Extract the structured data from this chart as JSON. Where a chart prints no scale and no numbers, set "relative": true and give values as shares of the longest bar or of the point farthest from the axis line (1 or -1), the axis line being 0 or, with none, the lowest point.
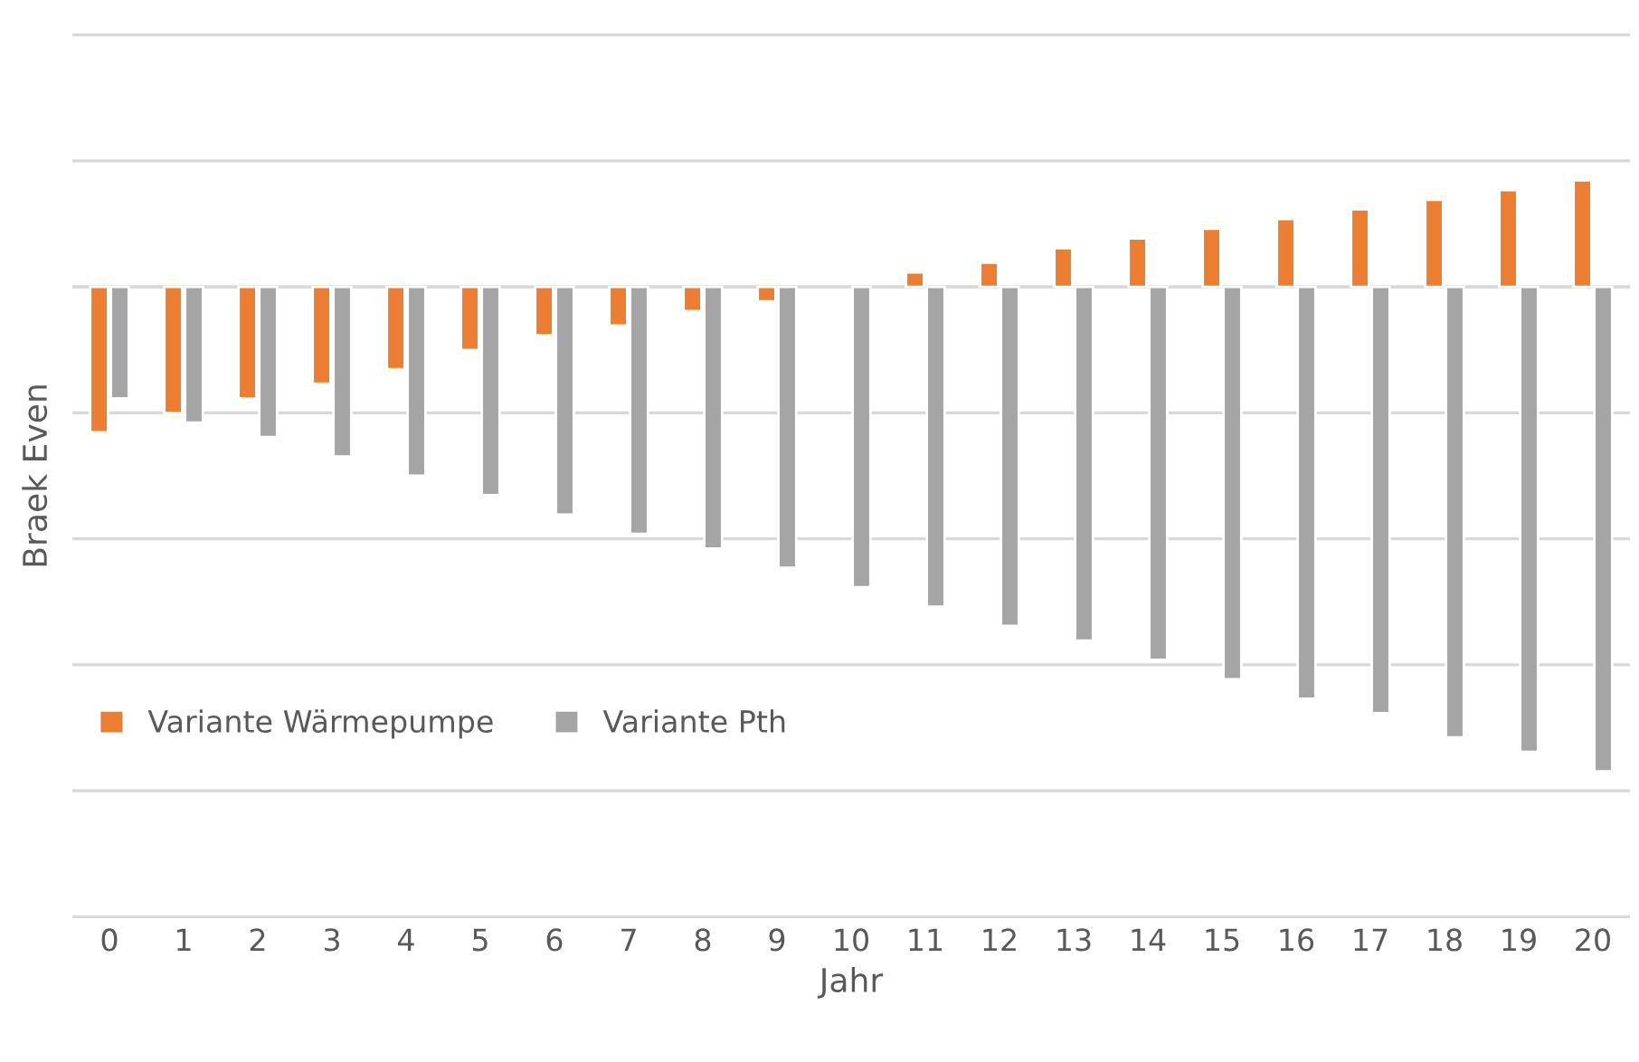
{
  "chart_data": {
    "type": "bar",
    "relative": true,
    "ylabel": "Braek Even",
    "xlabel": "Jahr",
    "categories": [
      "0",
      "1",
      "2",
      "3",
      "4",
      "5",
      "6",
      "7",
      "8",
      "9",
      "10",
      "11",
      "12",
      "13",
      "14",
      "15",
      "16",
      "17",
      "18",
      "19",
      "20"
    ],
    "series": [
      {
        "name": "Variante Wärmepumpe",
        "color": "#ed7d31",
        "values": [
          -0.3,
          -0.26,
          -0.23,
          -0.2,
          -0.17,
          -0.13,
          -0.1,
          -0.08,
          -0.05,
          -0.03,
          null,
          0.03,
          0.05,
          0.08,
          0.1,
          0.12,
          0.14,
          0.16,
          0.18,
          0.2,
          0.22
        ]
      },
      {
        "name": "Variante Pth",
        "color": "#a5a5a5",
        "values": [
          -0.23,
          -0.28,
          -0.31,
          -0.35,
          -0.39,
          -0.43,
          -0.47,
          -0.51,
          -0.54,
          -0.58,
          -0.62,
          -0.66,
          -0.7,
          -0.73,
          -0.77,
          -0.81,
          -0.85,
          -0.88,
          -0.93,
          -0.96,
          -1
        ]
      }
    ],
    "grid": "y",
    "legend": "left"
  }
}
